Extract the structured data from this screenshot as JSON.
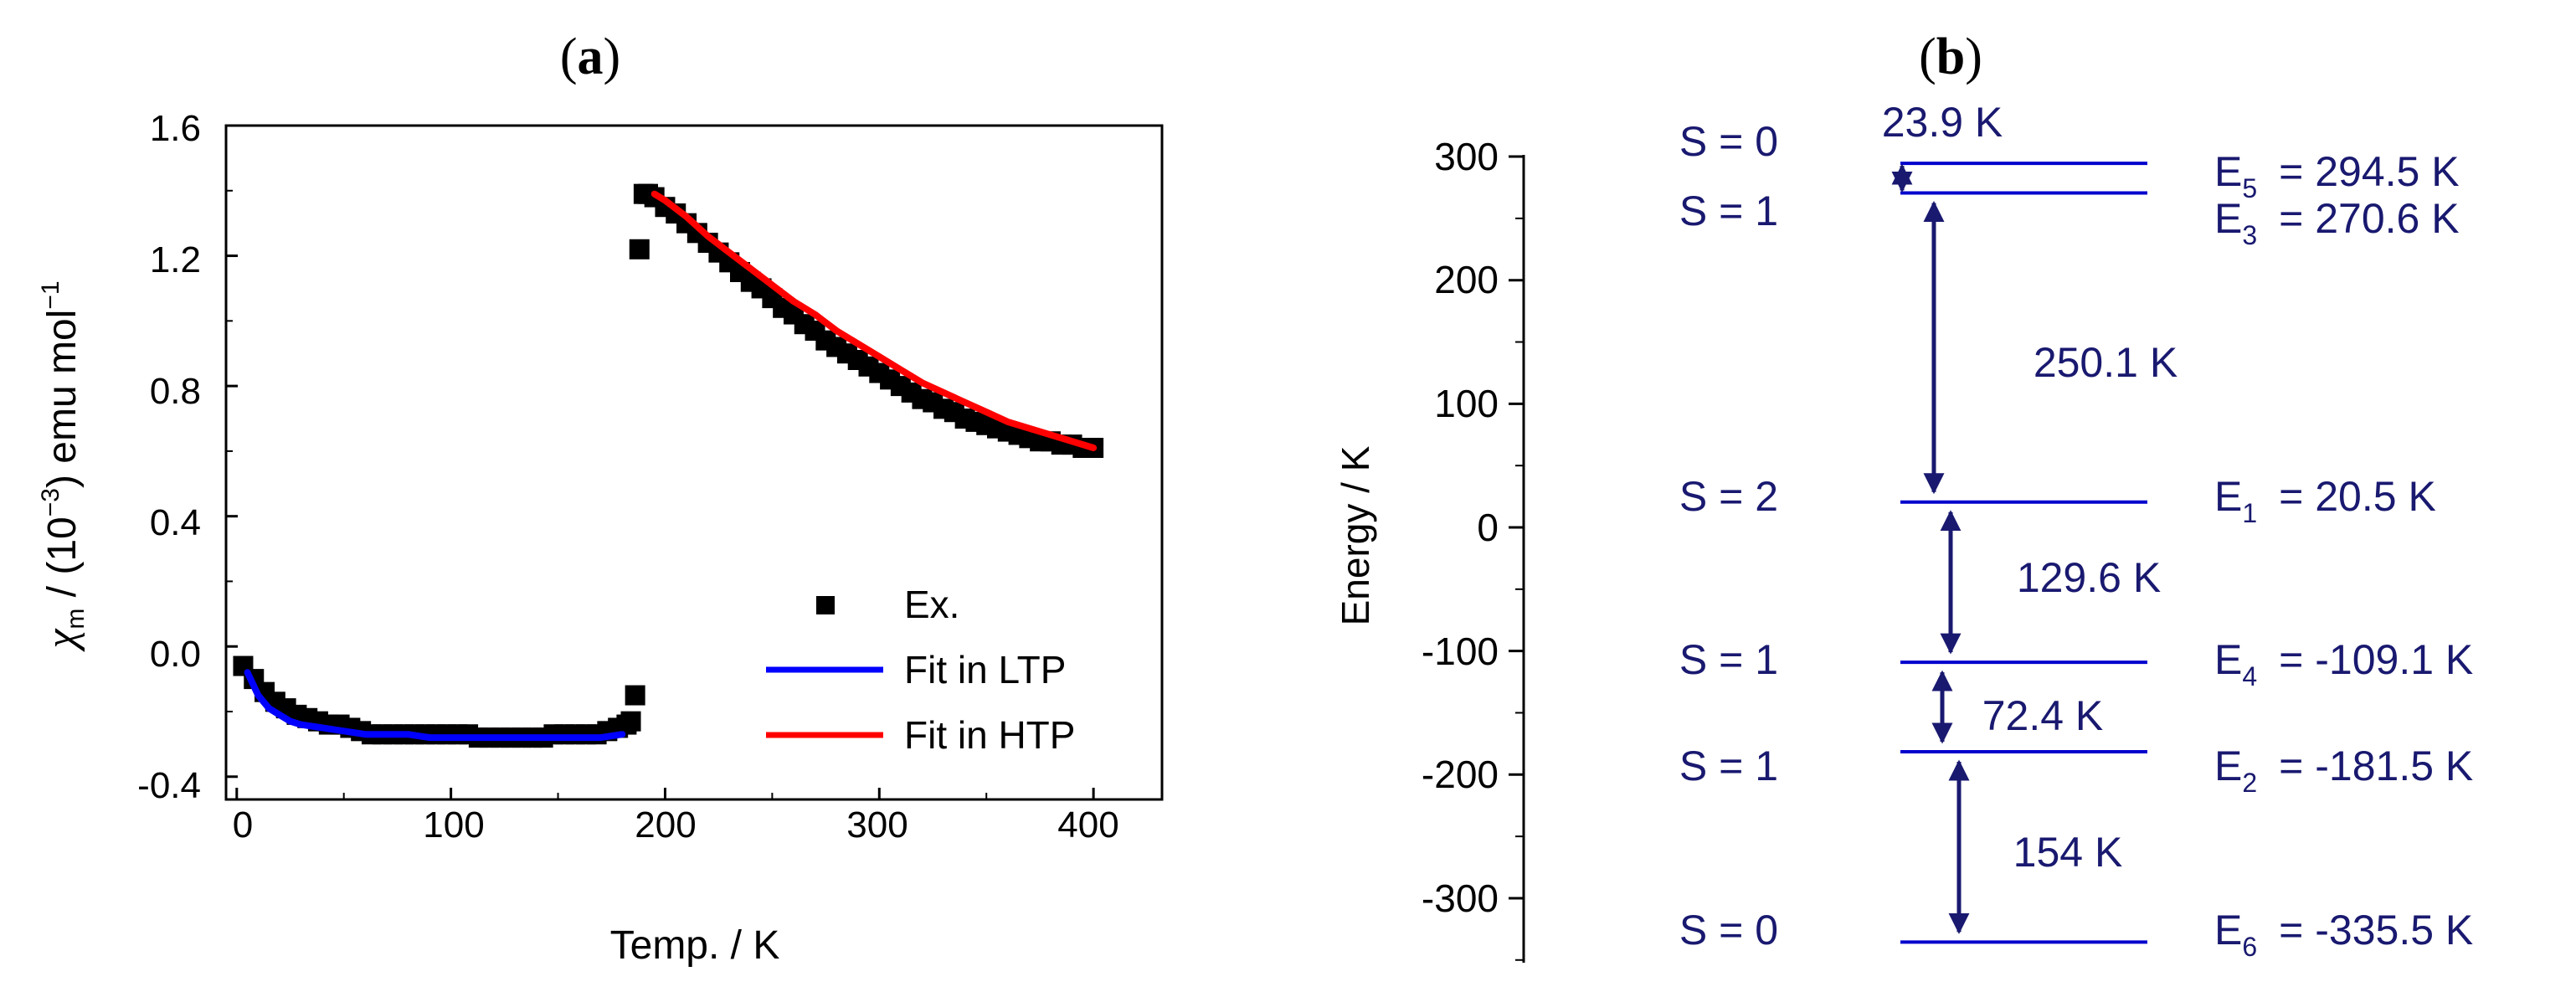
{
  "panel_a": {
    "label_open": "(",
    "label_letter": "a",
    "label_close": ")",
    "ylabel_chi": "χ",
    "ylabel_sub": "m",
    "ylabel_mid": " / (10",
    "ylabel_exp": "−3",
    "ylabel_end": ") emu mol",
    "ylabel_unit_exp": "−1",
    "yticks": [
      "1.6",
      "1.2",
      "0.8",
      "0.4",
      "0.0",
      "-0.4"
    ],
    "xticks": [
      "0",
      "100",
      "200",
      "300",
      "400"
    ],
    "legend": [
      "Ex.",
      "Fit in LTP",
      "Fit in HTP"
    ]
  },
  "panel_b": {
    "label_open": "(",
    "label_letter": "b",
    "label_close": ")",
    "levels": [
      {
        "spin": "S = 0",
        "e_name": "E",
        "e_sub": "5",
        "e_value": "= 294.5 K"
      },
      {
        "spin": "S = 1",
        "e_name": "E",
        "e_sub": "3",
        "e_value": "= 270.6 K"
      },
      {
        "spin": "S = 2",
        "e_name": "E",
        "e_sub": "1",
        "e_value": "= 20.5 K"
      },
      {
        "spin": "S = 1",
        "e_name": "E",
        "e_sub": "4",
        "e_value": "= -109.1 K"
      },
      {
        "spin": "S = 1",
        "e_name": "E",
        "e_sub": "2",
        "e_value": "= -181.5 K"
      },
      {
        "spin": "S = 0",
        "e_name": "E",
        "e_sub": "6",
        "e_value": "= -335.5 K"
      }
    ],
    "gaps": [
      "23.9 K",
      "250.1 K",
      "129.6 K",
      "72.4 K",
      "154 K"
    ]
  },
  "chart_data": [
    {
      "type": "scatter",
      "title": "(a)",
      "xlabel": "Temp. / K",
      "ylabel": "χm / (10−3) emu mol−1",
      "xlim": [
        -5,
        432
      ],
      "ylim": [
        -0.47,
        1.6
      ],
      "xticks": [
        0,
        100,
        200,
        300,
        400
      ],
      "yticks": [
        -0.4,
        0.0,
        0.4,
        0.8,
        1.2,
        1.6
      ],
      "legend_position": "bottom-right",
      "series": [
        {
          "name": "Ex.",
          "style": "black squares",
          "x": [
            3,
            8,
            13,
            18,
            23,
            28,
            33,
            38,
            43,
            48,
            53,
            58,
            63,
            68,
            73,
            78,
            83,
            88,
            93,
            98,
            103,
            108,
            113,
            118,
            123,
            128,
            133,
            138,
            143,
            148,
            153,
            158,
            163,
            168,
            173,
            178,
            182,
            184,
            186,
            188,
            190,
            192,
            195,
            200,
            205,
            210,
            215,
            220,
            225,
            230,
            235,
            240,
            245,
            250,
            255,
            260,
            265,
            270,
            275,
            280,
            285,
            290,
            295,
            300,
            305,
            310,
            315,
            320,
            325,
            330,
            335,
            340,
            345,
            350,
            355,
            360,
            365,
            370,
            375,
            380,
            385,
            390,
            395,
            400
          ],
          "y": [
            -0.06,
            -0.1,
            -0.14,
            -0.17,
            -0.19,
            -0.21,
            -0.22,
            -0.23,
            -0.24,
            -0.24,
            -0.25,
            -0.26,
            -0.27,
            -0.27,
            -0.27,
            -0.27,
            -0.27,
            -0.27,
            -0.27,
            -0.27,
            -0.27,
            -0.27,
            -0.28,
            -0.28,
            -0.28,
            -0.28,
            -0.28,
            -0.28,
            -0.28,
            -0.27,
            -0.27,
            -0.27,
            -0.27,
            -0.27,
            -0.26,
            -0.25,
            -0.24,
            -0.23,
            -0.15,
            1.22,
            1.39,
            1.39,
            1.38,
            1.35,
            1.33,
            1.3,
            1.27,
            1.24,
            1.21,
            1.18,
            1.15,
            1.12,
            1.1,
            1.07,
            1.04,
            1.02,
            0.99,
            0.97,
            0.94,
            0.92,
            0.9,
            0.88,
            0.86,
            0.84,
            0.82,
            0.8,
            0.78,
            0.76,
            0.75,
            0.73,
            0.72,
            0.7,
            0.69,
            0.68,
            0.67,
            0.66,
            0.65,
            0.64,
            0.63,
            0.63,
            0.62,
            0.62,
            0.61,
            0.61
          ]
        },
        {
          "name": "Fit in LTP",
          "style": "blue line",
          "x": [
            5,
            10,
            15,
            20,
            25,
            30,
            40,
            50,
            60,
            70,
            80,
            90,
            100,
            110,
            120,
            130,
            140,
            150,
            160,
            170,
            180
          ],
          "y": [
            -0.08,
            -0.15,
            -0.19,
            -0.21,
            -0.23,
            -0.24,
            -0.25,
            -0.26,
            -0.27,
            -0.27,
            -0.27,
            -0.28,
            -0.28,
            -0.28,
            -0.28,
            -0.28,
            -0.28,
            -0.28,
            -0.28,
            -0.28,
            -0.27
          ]
        },
        {
          "name": "Fit in HTP",
          "style": "red line",
          "x": [
            195,
            200,
            210,
            220,
            230,
            240,
            250,
            260,
            270,
            280,
            290,
            300,
            310,
            320,
            330,
            340,
            350,
            360,
            370,
            380,
            390,
            400
          ],
          "y": [
            1.39,
            1.37,
            1.32,
            1.26,
            1.21,
            1.16,
            1.11,
            1.06,
            1.02,
            0.97,
            0.93,
            0.89,
            0.85,
            0.81,
            0.78,
            0.75,
            0.72,
            0.69,
            0.67,
            0.65,
            0.63,
            0.61
          ]
        }
      ]
    },
    {
      "type": "energy-level-diagram",
      "title": "(b)",
      "ylabel": "Energy / K",
      "ylim": [
        -350,
        318
      ],
      "yticks": [
        300,
        200,
        100,
        0,
        -100,
        -200,
        -300
      ],
      "levels": [
        {
          "name": "E5",
          "spin": "S = 0",
          "energy": 294.5
        },
        {
          "name": "E3",
          "spin": "S = 1",
          "energy": 270.6
        },
        {
          "name": "E1",
          "spin": "S = 2",
          "energy": 20.5
        },
        {
          "name": "E4",
          "spin": "S = 1",
          "energy": -109.1
        },
        {
          "name": "E2",
          "spin": "S = 1",
          "energy": -181.5
        },
        {
          "name": "E6",
          "spin": "S = 0",
          "energy": -335.5
        }
      ],
      "gaps": [
        {
          "from": "E3",
          "to": "E5",
          "value": 23.9
        },
        {
          "from": "E1",
          "to": "E3",
          "value": 250.1
        },
        {
          "from": "E4",
          "to": "E1",
          "value": 129.6
        },
        {
          "from": "E2",
          "to": "E4",
          "value": 72.4
        },
        {
          "from": "E6",
          "to": "E2",
          "value": 154
        }
      ]
    }
  ]
}
